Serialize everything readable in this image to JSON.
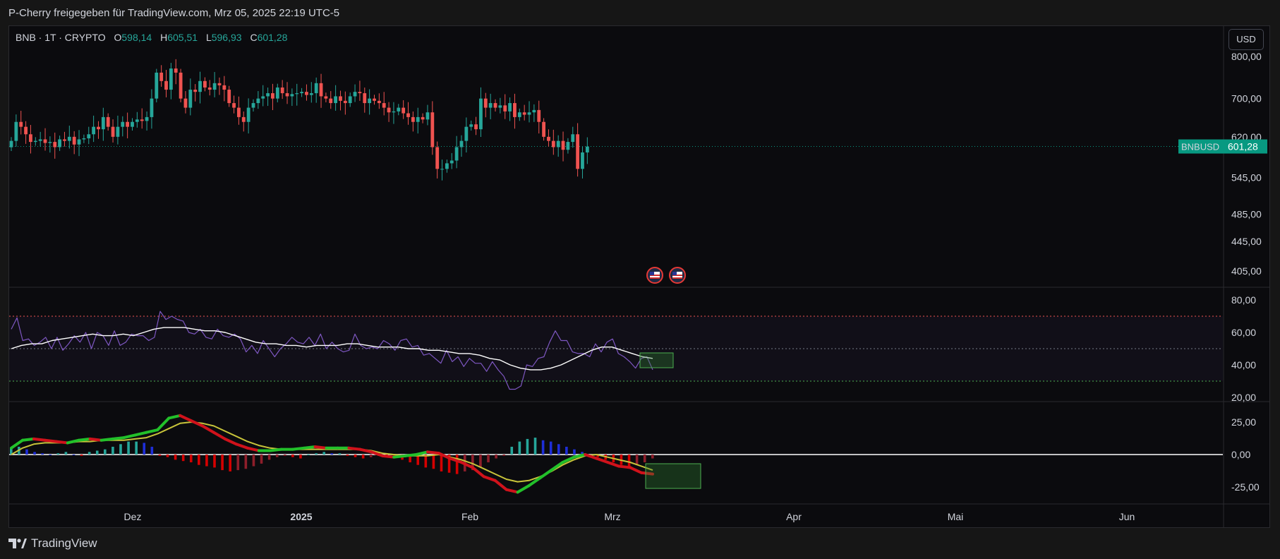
{
  "header": {
    "share_text": "P-Cherry freigegeben für TradingView.com, Mrz 05, 2025 22:19 UTC-5"
  },
  "legend": {
    "symbol": "BNB · 1T · CRYPTO",
    "open_label": "O",
    "open": "598,14",
    "high_label": "H",
    "high": "605,51",
    "low_label": "L",
    "low": "596,93",
    "close_label": "C",
    "close": "601,28"
  },
  "currency_button": "USD",
  "price_tag": {
    "symbol": "BNBUSD",
    "value": "601,28"
  },
  "footer": {
    "brand": "TradingView"
  },
  "colors": {
    "up": "#26a69a",
    "down": "#ef5350",
    "accent": "#089981",
    "rsi": "#7e57c2",
    "rsi_ma": "#ffffff",
    "macd_line": "#22c02a",
    "macd_line_down": "#d0121b",
    "signal": "#c8c43a"
  },
  "icons": [
    "us-flag-event-icon",
    "us-flag-event-icon",
    "tradingview-logo-icon"
  ],
  "chart_data": [
    {
      "type": "candlestick",
      "title": "BNB · 1T · CRYPTO",
      "y_ticks": [
        "800,00",
        "700,00",
        "620,00",
        "545,00",
        "485,00",
        "445,00",
        "405,00"
      ],
      "y_tick_values": [
        800,
        700,
        620,
        545,
        485,
        445,
        405
      ],
      "scale": "log",
      "x_ticks": [
        "Dez",
        "2025",
        "Feb",
        "Mrz",
        "Apr",
        "Mai",
        "Jun"
      ],
      "last_price": 601.28,
      "closes": [
        612,
        650,
        640,
        625,
        610,
        612,
        615,
        608,
        610,
        600,
        615,
        612,
        620,
        605,
        615,
        617,
        625,
        640,
        635,
        660,
        640,
        620,
        640,
        650,
        640,
        650,
        655,
        652,
        660,
        700,
        760,
        740,
        720,
        770,
        760,
        700,
        680,
        720,
        715,
        740,
        725,
        720,
        735,
        730,
        720,
        690,
        680,
        660,
        650,
        680,
        690,
        700,
        705,
        712,
        700,
        725,
        712,
        705,
        710,
        712,
        715,
        708,
        712,
        735,
        705,
        700,
        690,
        705,
        695,
        690,
        705,
        715,
        712,
        690,
        700,
        695,
        690,
        680,
        670,
        672,
        680,
        668,
        660,
        650,
        660,
        655,
        670,
        600,
        560,
        560,
        570,
        575,
        600,
        612,
        640,
        645,
        635,
        700,
        680,
        690,
        680,
        685,
        672,
        690,
        660,
        670,
        665,
        670,
        675,
        650,
        620,
        612,
        600,
        612,
        595,
        610,
        625,
        560,
        590,
        601
      ]
    },
    {
      "type": "line",
      "title": "RSI",
      "y_ticks": [
        "80,00",
        "60,00",
        "40,00",
        "20,00"
      ],
      "y_tick_values": [
        80,
        60,
        40,
        20
      ],
      "levels": [
        70,
        50,
        30
      ],
      "series": [
        {
          "values": [
            62,
            69,
            55,
            56,
            52,
            54,
            57,
            50,
            57,
            49,
            53,
            58,
            54,
            60,
            50,
            60,
            58,
            52,
            61,
            52,
            54,
            59,
            58,
            58,
            55,
            57,
            73,
            68,
            70,
            68,
            67,
            60,
            59,
            62,
            57,
            56,
            62,
            58,
            57,
            59,
            56,
            48,
            52,
            47,
            55,
            50,
            45,
            50,
            53,
            57,
            54,
            53,
            57,
            52,
            59,
            50,
            54,
            50,
            48,
            49,
            59,
            52,
            50,
            51,
            50,
            55,
            53,
            49,
            55,
            56,
            51,
            52,
            46,
            47,
            44,
            41,
            49,
            42,
            45,
            39,
            44,
            41,
            41,
            36,
            42,
            37,
            33,
            25,
            25,
            27,
            40,
            39,
            44,
            45,
            54,
            61,
            55,
            55,
            48,
            47,
            47,
            45,
            53,
            48,
            54,
            56,
            47,
            45,
            42,
            38,
            44,
            45,
            37
          ]
        },
        {
          "values": [
            50,
            52,
            53,
            53,
            55,
            56,
            57,
            58,
            59,
            58,
            58,
            59,
            58,
            60,
            62,
            63,
            63,
            63,
            62,
            61,
            61,
            60,
            58,
            56,
            54,
            53,
            53,
            52,
            52,
            51,
            52,
            52,
            52,
            53,
            53,
            52,
            51,
            51,
            51,
            50,
            50,
            49,
            49,
            48,
            47,
            47,
            46,
            44,
            43,
            40,
            38,
            37,
            37,
            38,
            40,
            43,
            46,
            49,
            51,
            51,
            49,
            47,
            45,
            44
          ]
        }
      ]
    },
    {
      "type": "line",
      "title": "MACD",
      "y_ticks": [
        "25,00",
        "0,00",
        "-25,00"
      ],
      "y_tick_values": [
        25,
        0,
        -25
      ],
      "series": [
        {
          "values": [
            5,
            11,
            12,
            11,
            10,
            9,
            11,
            12,
            11,
            12,
            13,
            15,
            17,
            19,
            28,
            30,
            26,
            22,
            17,
            12,
            8,
            5,
            3,
            3,
            4,
            4,
            5,
            6,
            5,
            5,
            5,
            4,
            2,
            -1,
            -2,
            -1,
            0,
            2,
            1,
            -3,
            -6,
            -10,
            -17,
            -20,
            -27,
            -29,
            -24,
            -18,
            -12,
            -6,
            -2,
            0,
            -3,
            -6,
            -9,
            -10,
            -14,
            -15
          ]
        },
        {
          "values": [
            0,
            5,
            8,
            9,
            9,
            9,
            10,
            10,
            11,
            11,
            11,
            12,
            13,
            16,
            20,
            24,
            25,
            24,
            22,
            18,
            14,
            10,
            7,
            5,
            4,
            4,
            4,
            4,
            4,
            4,
            4,
            4,
            3,
            1,
            0,
            -1,
            -1,
            -1,
            0,
            -2,
            -4,
            -7,
            -11,
            -15,
            -19,
            -21,
            -20,
            -17,
            -13,
            -8,
            -4,
            -1,
            0,
            -2,
            -4,
            -6,
            -9,
            -12
          ]
        },
        {
          "values": [
            5,
            6,
            4,
            2,
            1,
            0,
            1,
            2,
            0,
            -1,
            2,
            3,
            4,
            6,
            8,
            10,
            10,
            9,
            6,
            -1,
            -2,
            -4,
            -5,
            -6,
            -8,
            -9,
            -10,
            -12,
            -13,
            -12,
            -11,
            -9,
            -7,
            -4,
            -2,
            -1,
            -2,
            -3,
            0,
            1,
            2,
            1,
            1,
            -1,
            -2,
            -3,
            -2,
            -1,
            -2,
            -3,
            -4,
            -6,
            -8,
            -10,
            -11,
            -13,
            -14,
            -15,
            -13,
            -12,
            -10,
            -6,
            -3,
            -1,
            6,
            10,
            12,
            13,
            11,
            10,
            8,
            6,
            4,
            2,
            0,
            -2,
            -4,
            -6,
            -8,
            -9,
            -8,
            -6,
            -3
          ]
        }
      ]
    }
  ]
}
